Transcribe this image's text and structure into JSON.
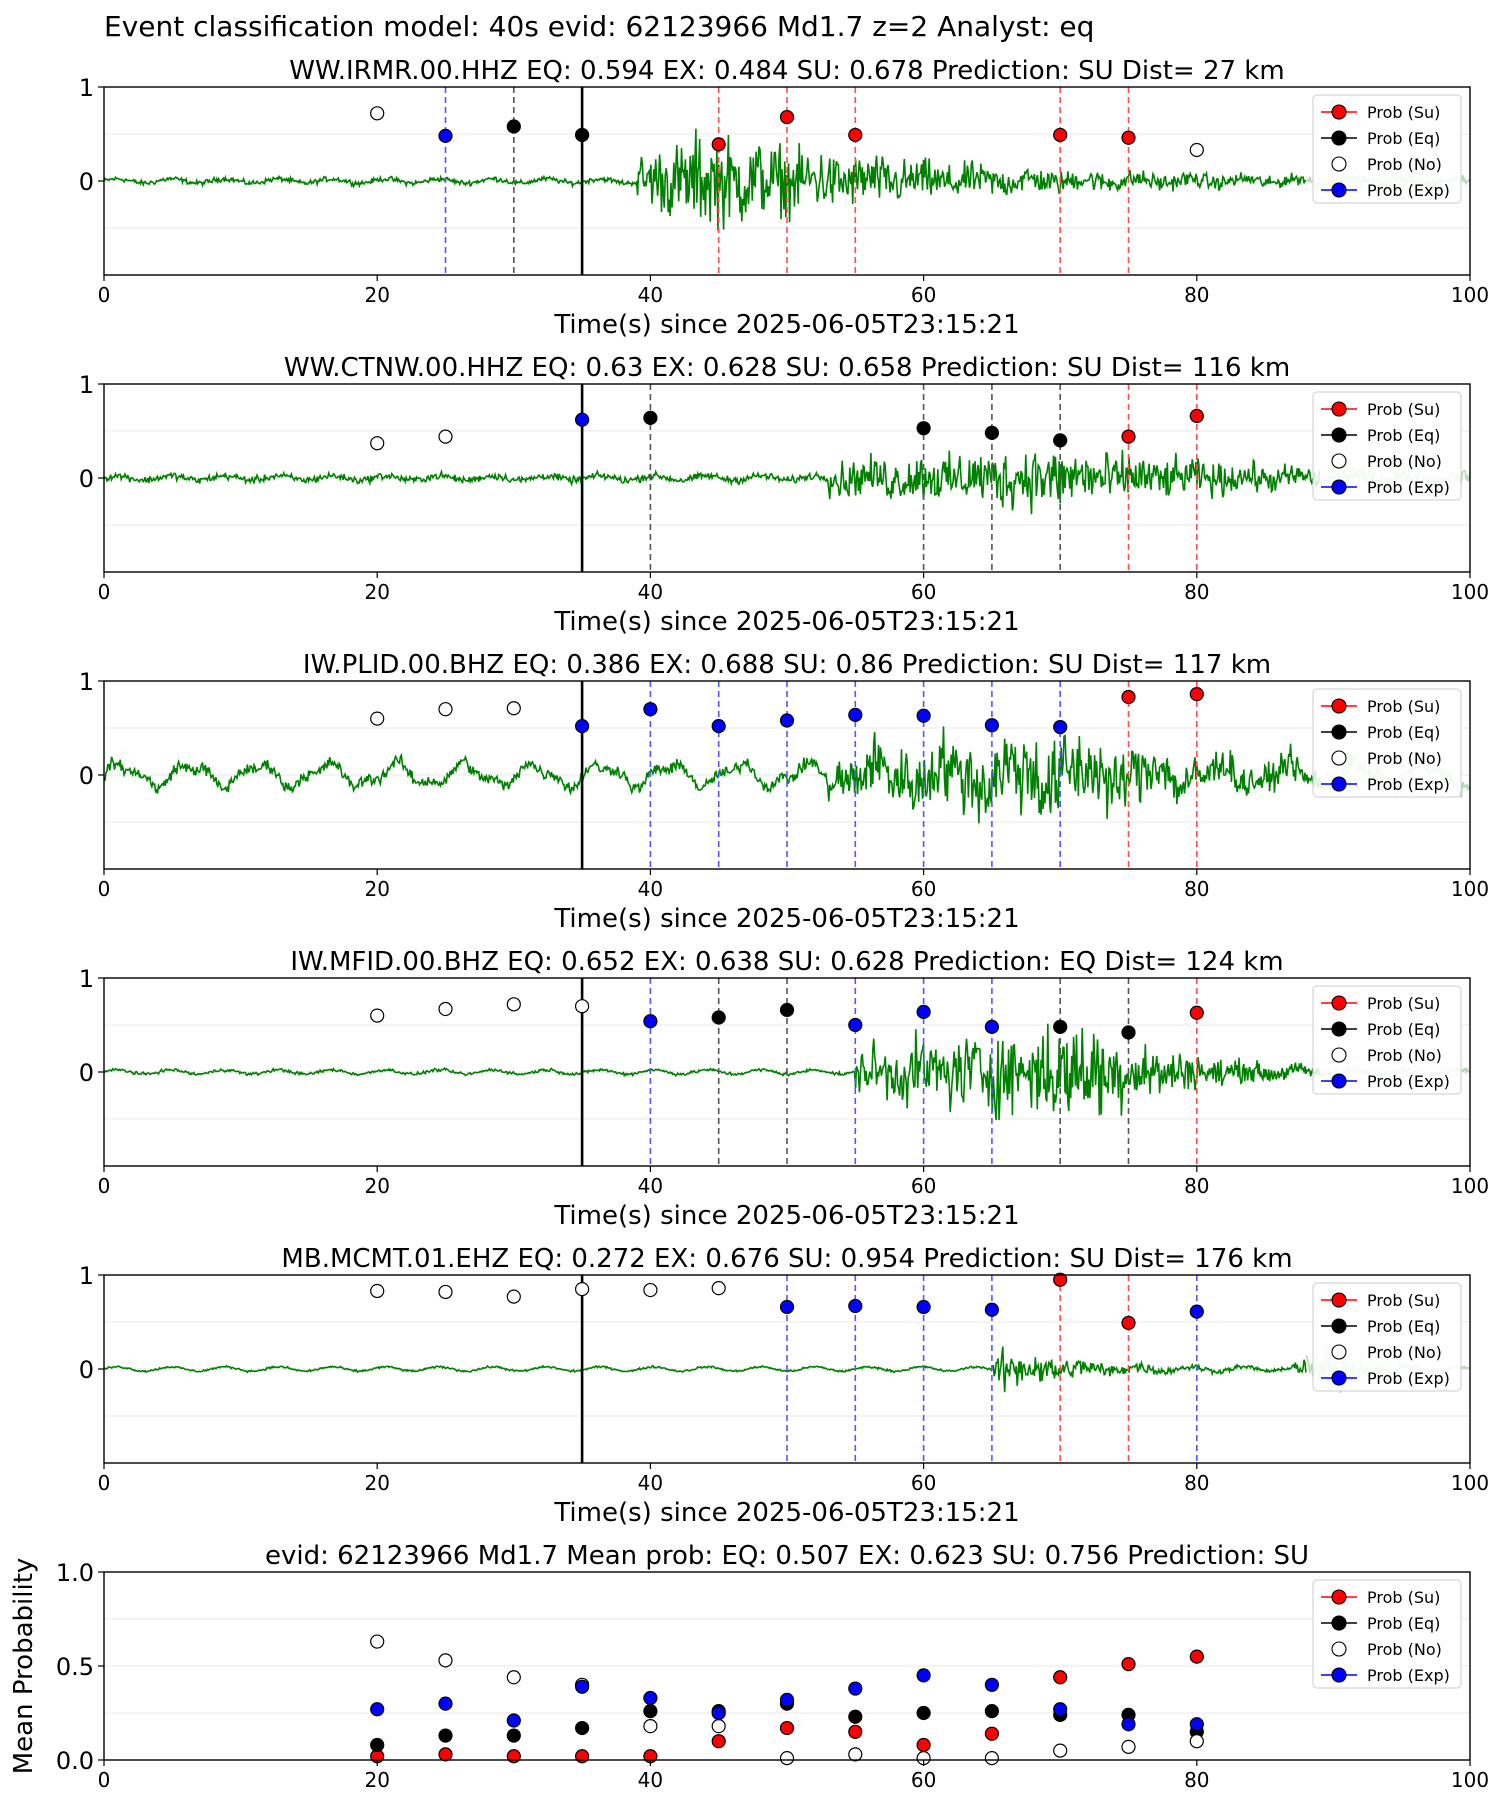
{
  "suptitle": "Event classification model: 40s evid: 62123966 Md1.7 z=2 Analyst: eq",
  "colors": {
    "su": "#ff0000",
    "eq": "#000000",
    "no": "#ffffff",
    "exp": "#0000ff",
    "trace": "#008000",
    "trace_faded": "#b5d9b5",
    "vline_su": "#ff4d4d",
    "vline_eq": "#555555",
    "vline_exp": "#5555ff"
  },
  "legend_labels": [
    "Prob (Su)",
    "Prob (Eq)",
    "Prob (No)",
    "Prob (Exp)"
  ],
  "chart_data": [
    {
      "type": "scatter",
      "title": "WW.IRMR.00.HHZ   EQ: 0.594  EX: 0.484  SU: 0.678   Prediction: SU    Dist= 27 km",
      "xlabel": "Time(s) since 2025-06-05T23:15:21",
      "xlim": [
        0,
        100
      ],
      "ylim": [
        -1,
        1
      ],
      "xticks": [
        "0",
        "20",
        "40",
        "60",
        "80",
        "100"
      ],
      "yticks": [
        "0",
        "1"
      ],
      "legend": "top-right",
      "origin_line_x": 35,
      "signal": {
        "onset": 39,
        "peak": 44,
        "quiet": 0.05,
        "amp": 0.9,
        "decay": 16,
        "faded_from": 88
      },
      "points": [
        {
          "x": 20,
          "y": 0.72,
          "cls": "no"
        },
        {
          "x": 25,
          "y": 0.48,
          "cls": "exp"
        },
        {
          "x": 30,
          "y": 0.58,
          "cls": "eq"
        },
        {
          "x": 35,
          "y": 0.49,
          "cls": "eq"
        },
        {
          "x": 45,
          "y": 0.39,
          "cls": "su"
        },
        {
          "x": 50,
          "y": 0.68,
          "cls": "su"
        },
        {
          "x": 55,
          "y": 0.49,
          "cls": "su"
        },
        {
          "x": 70,
          "y": 0.49,
          "cls": "su"
        },
        {
          "x": 75,
          "y": 0.46,
          "cls": "su"
        },
        {
          "x": 80,
          "y": 0.33,
          "cls": "no"
        }
      ]
    },
    {
      "type": "scatter",
      "title": "WW.CTNW.00.HHZ   EQ: 0.63  EX: 0.628  SU: 0.658   Prediction: SU    Dist= 116 km",
      "xlabel": "Time(s) since 2025-06-05T23:15:21",
      "xlim": [
        0,
        100
      ],
      "ylim": [
        -1,
        1
      ],
      "xticks": [
        "0",
        "20",
        "40",
        "60",
        "80",
        "100"
      ],
      "yticks": [
        "0",
        "1"
      ],
      "legend": "top-right",
      "origin_line_x": 35,
      "signal": {
        "onset": 53,
        "peak": 70,
        "quiet": 0.07,
        "amp": 0.55,
        "decay": 14,
        "faded_from": 89
      },
      "points": [
        {
          "x": 20,
          "y": 0.37,
          "cls": "no"
        },
        {
          "x": 25,
          "y": 0.44,
          "cls": "no"
        },
        {
          "x": 35,
          "y": 0.62,
          "cls": "exp"
        },
        {
          "x": 40,
          "y": 0.64,
          "cls": "eq"
        },
        {
          "x": 60,
          "y": 0.53,
          "cls": "eq"
        },
        {
          "x": 65,
          "y": 0.48,
          "cls": "eq"
        },
        {
          "x": 70,
          "y": 0.4,
          "cls": "eq"
        },
        {
          "x": 75,
          "y": 0.44,
          "cls": "su"
        },
        {
          "x": 80,
          "y": 0.66,
          "cls": "su"
        }
      ]
    },
    {
      "type": "scatter",
      "title": "IW.PLID.00.BHZ   EQ: 0.386  EX: 0.688  SU: 0.86   Prediction: SU    Dist= 117 km",
      "xlabel": "Time(s) since 2025-06-05T23:15:21",
      "xlim": [
        0,
        100
      ],
      "ylim": [
        -1,
        1
      ],
      "xticks": [
        "0",
        "20",
        "40",
        "60",
        "80",
        "100"
      ],
      "yticks": [
        "0",
        "1"
      ],
      "legend": "top-right",
      "origin_line_x": 35,
      "signal": {
        "onset": 53,
        "peak": 70,
        "quiet": 0.12,
        "amp": 0.75,
        "decay": 10,
        "faded_from": 89,
        "wavy": true
      },
      "points": [
        {
          "x": 20,
          "y": 0.6,
          "cls": "no"
        },
        {
          "x": 25,
          "y": 0.7,
          "cls": "no"
        },
        {
          "x": 30,
          "y": 0.71,
          "cls": "no"
        },
        {
          "x": 35,
          "y": 0.52,
          "cls": "exp"
        },
        {
          "x": 40,
          "y": 0.7,
          "cls": "exp"
        },
        {
          "x": 45,
          "y": 0.52,
          "cls": "exp"
        },
        {
          "x": 50,
          "y": 0.58,
          "cls": "exp"
        },
        {
          "x": 55,
          "y": 0.64,
          "cls": "exp"
        },
        {
          "x": 60,
          "y": 0.63,
          "cls": "exp"
        },
        {
          "x": 65,
          "y": 0.53,
          "cls": "exp"
        },
        {
          "x": 70,
          "y": 0.51,
          "cls": "exp"
        },
        {
          "x": 75,
          "y": 0.83,
          "cls": "su"
        },
        {
          "x": 80,
          "y": 0.86,
          "cls": "su"
        }
      ]
    },
    {
      "type": "scatter",
      "title": "IW.MFID.00.BHZ   EQ: 0.652  EX: 0.638  SU: 0.628   Prediction: EQ    Dist= 124 km",
      "xlabel": "Time(s) since 2025-06-05T23:15:21",
      "xlim": [
        0,
        100
      ],
      "ylim": [
        -1,
        1
      ],
      "xticks": [
        "0",
        "20",
        "40",
        "60",
        "80",
        "100"
      ],
      "yticks": [
        "0",
        "1"
      ],
      "legend": "top-right",
      "origin_line_x": 35,
      "signal": {
        "onset": 55,
        "peak": 72,
        "quiet": 0.03,
        "amp": 0.95,
        "decay": 7,
        "faded_from": 89
      },
      "points": [
        {
          "x": 20,
          "y": 0.6,
          "cls": "no"
        },
        {
          "x": 25,
          "y": 0.67,
          "cls": "no"
        },
        {
          "x": 30,
          "y": 0.72,
          "cls": "no"
        },
        {
          "x": 35,
          "y": 0.7,
          "cls": "no"
        },
        {
          "x": 40,
          "y": 0.54,
          "cls": "exp"
        },
        {
          "x": 45,
          "y": 0.58,
          "cls": "eq"
        },
        {
          "x": 50,
          "y": 0.66,
          "cls": "eq"
        },
        {
          "x": 55,
          "y": 0.5,
          "cls": "exp"
        },
        {
          "x": 60,
          "y": 0.64,
          "cls": "exp"
        },
        {
          "x": 65,
          "y": 0.48,
          "cls": "exp"
        },
        {
          "x": 70,
          "y": 0.48,
          "cls": "eq"
        },
        {
          "x": 75,
          "y": 0.42,
          "cls": "eq"
        },
        {
          "x": 80,
          "y": 0.63,
          "cls": "su"
        }
      ]
    },
    {
      "type": "scatter",
      "title": "MB.MCMT.01.EHZ   EQ: 0.272  EX: 0.676  SU: 0.954   Prediction: SU    Dist= 176 km",
      "xlabel": "Time(s) since 2025-06-05T23:15:21",
      "xlim": [
        0,
        100
      ],
      "ylim": [
        -1,
        1
      ],
      "xticks": [
        "0",
        "20",
        "40",
        "60",
        "80",
        "100"
      ],
      "yticks": [
        "0",
        "1"
      ],
      "legend": "top-right",
      "origin_line_x": 35,
      "signal": {
        "onset": 65,
        "peak": 66,
        "quiet": 0.02,
        "amp": 0.4,
        "decay": 6,
        "faded_from": 88,
        "burst2": 90
      },
      "points": [
        {
          "x": 20,
          "y": 0.83,
          "cls": "no"
        },
        {
          "x": 25,
          "y": 0.82,
          "cls": "no"
        },
        {
          "x": 30,
          "y": 0.77,
          "cls": "no"
        },
        {
          "x": 35,
          "y": 0.85,
          "cls": "no"
        },
        {
          "x": 40,
          "y": 0.84,
          "cls": "no"
        },
        {
          "x": 45,
          "y": 0.86,
          "cls": "no"
        },
        {
          "x": 50,
          "y": 0.66,
          "cls": "exp"
        },
        {
          "x": 55,
          "y": 0.67,
          "cls": "exp"
        },
        {
          "x": 60,
          "y": 0.66,
          "cls": "exp"
        },
        {
          "x": 65,
          "y": 0.63,
          "cls": "exp"
        },
        {
          "x": 70,
          "y": 0.95,
          "cls": "su"
        },
        {
          "x": 75,
          "y": 0.49,
          "cls": "su"
        },
        {
          "x": 80,
          "y": 0.61,
          "cls": "exp"
        }
      ]
    },
    {
      "type": "scatter",
      "title": "evid: 62123966  Md1.7   Mean prob:   EQ: 0.507  EX: 0.623  SU: 0.756   Prediction: SU",
      "ylabel": "Mean Probability",
      "xlim": [
        0,
        100
      ],
      "ylim": [
        0,
        1
      ],
      "xticks": [
        "0",
        "20",
        "40",
        "60",
        "80",
        "100"
      ],
      "yticks": [
        "0.0",
        "0.5",
        "1.0"
      ],
      "legend": "top-right",
      "x": [
        20,
        25,
        30,
        35,
        40,
        45,
        50,
        55,
        60,
        65,
        70,
        75,
        80
      ],
      "series": [
        {
          "cls": "su",
          "values": [
            0.02,
            0.03,
            0.02,
            0.02,
            0.02,
            0.1,
            0.17,
            0.15,
            0.08,
            0.14,
            0.44,
            0.51,
            0.55
          ]
        },
        {
          "cls": "eq",
          "values": [
            0.08,
            0.13,
            0.13,
            0.17,
            0.26,
            0.26,
            0.3,
            0.23,
            0.25,
            0.26,
            0.24,
            0.24,
            0.15
          ]
        },
        {
          "cls": "no",
          "values": [
            0.63,
            0.53,
            0.44,
            0.4,
            0.18,
            0.18,
            0.01,
            0.03,
            0.01,
            0.01,
            0.05,
            0.07,
            0.1
          ]
        },
        {
          "cls": "exp",
          "values": [
            0.27,
            0.3,
            0.21,
            0.39,
            0.33,
            0.25,
            0.32,
            0.38,
            0.45,
            0.4,
            0.27,
            0.19,
            0.19
          ]
        }
      ]
    }
  ]
}
